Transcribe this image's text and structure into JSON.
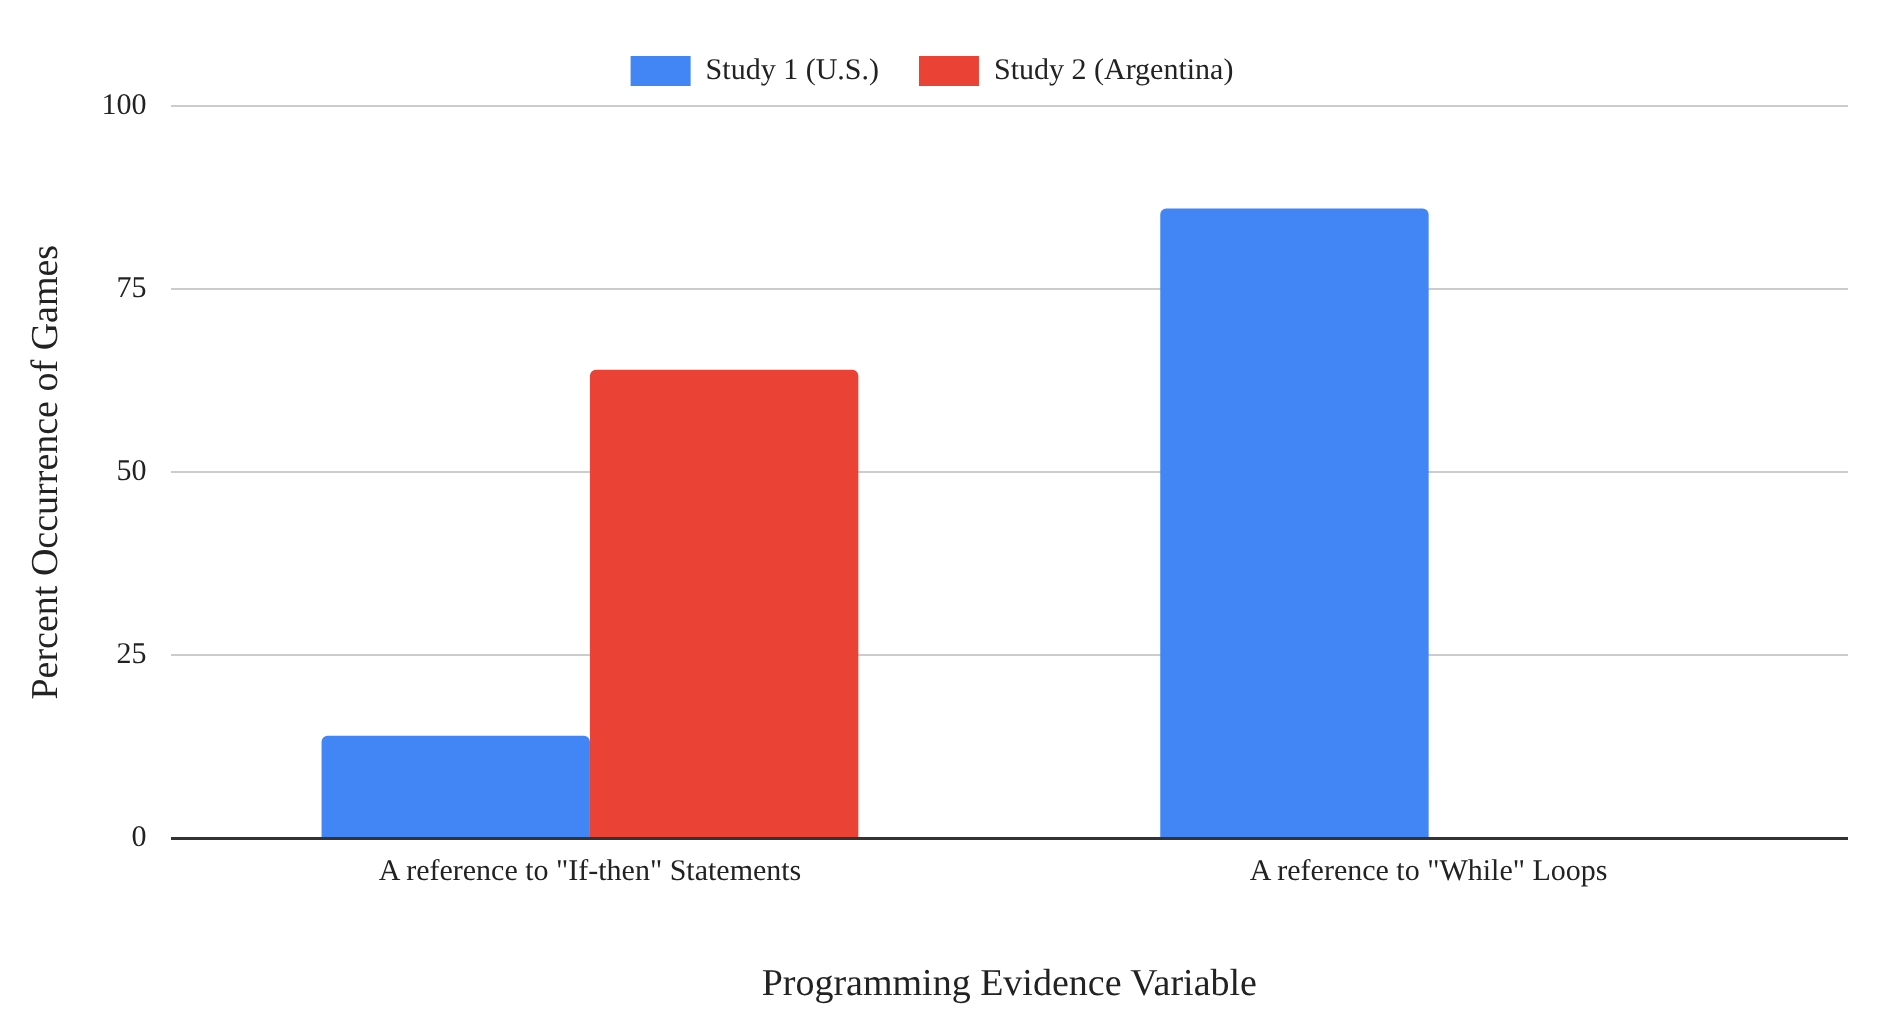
{
  "chart_data": {
    "type": "bar",
    "categories": [
      "A reference to \"If-then\" Statements",
      "A reference to \"While\" Loops"
    ],
    "series": [
      {
        "name": "Study 1 (U.S.)",
        "color": "#4285f4",
        "values": [
          14,
          86
        ]
      },
      {
        "name": "Study 2 (Argentina)",
        "color": "#ea4335",
        "values": [
          64,
          0
        ]
      }
    ],
    "xlabel": "Programming Evidence Variable",
    "ylabel": "Percent Occurrence of Games",
    "ylim": [
      0,
      100
    ],
    "yticks": [
      0,
      25,
      50,
      75,
      100
    ],
    "grid": "y",
    "legend": "top"
  }
}
